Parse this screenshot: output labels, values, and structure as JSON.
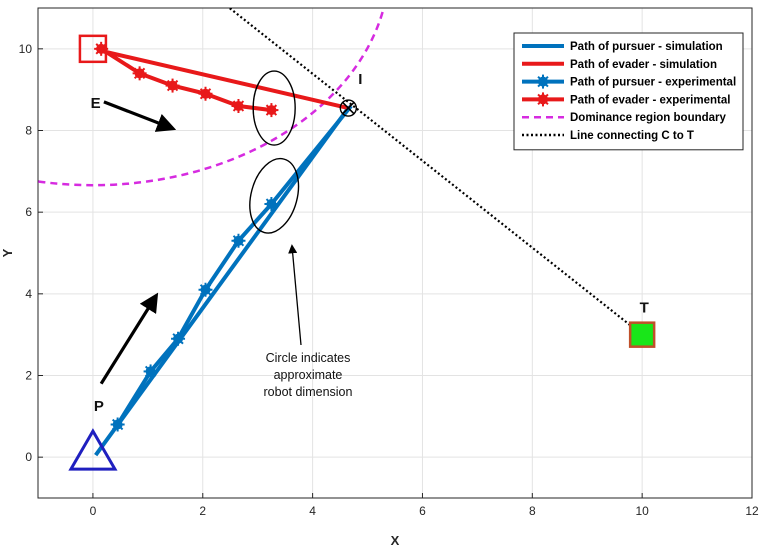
{
  "chart_data": {
    "type": "line",
    "xlabel": "X",
    "ylabel": "Y",
    "xlim": [
      -1,
      12
    ],
    "ylim": [
      -1,
      11
    ],
    "xticks": [
      0,
      2,
      4,
      6,
      8,
      10,
      12
    ],
    "yticks": [
      0,
      2,
      4,
      6,
      8,
      10
    ],
    "grid": true,
    "legend_position": "top-right",
    "series": [
      {
        "name": "Path of pursuer - simulation",
        "color": "#0072BD",
        "style": "solid",
        "marker": "none",
        "x": [
          0.05,
          4.65
        ],
        "y": [
          0.05,
          8.55
        ]
      },
      {
        "name": "Path of evader - simulation",
        "color": "#E8191A",
        "style": "solid",
        "marker": "none",
        "x": [
          0.15,
          4.65
        ],
        "y": [
          9.95,
          8.55
        ]
      },
      {
        "name": "Path of pursuer - experimental",
        "color": "#0072BD",
        "style": "solid",
        "marker": "asterisk",
        "x": [
          0.45,
          1.05,
          1.55,
          2.05,
          2.65,
          3.25,
          4.7
        ],
        "y": [
          0.8,
          2.1,
          2.9,
          4.1,
          5.3,
          6.2,
          8.6
        ]
      },
      {
        "name": "Path of evader - experimental",
        "color": "#E8191A",
        "style": "solid",
        "marker": "asterisk",
        "x": [
          0.15,
          0.85,
          1.45,
          2.05,
          2.65,
          3.25
        ],
        "y": [
          10.0,
          9.4,
          9.1,
          8.9,
          8.6,
          8.5
        ]
      },
      {
        "name": "Dominance region boundary",
        "color": "#D62BE0",
        "style": "dashed",
        "marker": "none",
        "circle": {
          "center": [
            0,
            12.06
          ],
          "radius": 5.4
        }
      },
      {
        "name": "Line connecting C to T",
        "color": "#000000",
        "style": "dotted",
        "marker": "none",
        "x": [
          2.3,
          10.0
        ],
        "y": [
          11.2,
          3.0
        ]
      }
    ],
    "markers": [
      {
        "label": "E",
        "shape": "square",
        "x": 0.0,
        "y": 10.0,
        "color": "#E8191A",
        "fill": "none"
      },
      {
        "label": "P",
        "shape": "triangle",
        "x": 0.0,
        "y": 0.0,
        "color": "#1F1FBF",
        "fill": "none"
      },
      {
        "label": "T",
        "shape": "square",
        "x": 10.0,
        "y": 3.0,
        "color": "#C0502A",
        "fill": "#19E619"
      },
      {
        "label": "I",
        "shape": "x-circle",
        "x": 4.65,
        "y": 8.55,
        "color": "#000000",
        "fill": "none"
      }
    ],
    "annotations": {
      "circle_note": [
        "Circle indicates",
        "approximate",
        "robot dimension"
      ]
    }
  }
}
